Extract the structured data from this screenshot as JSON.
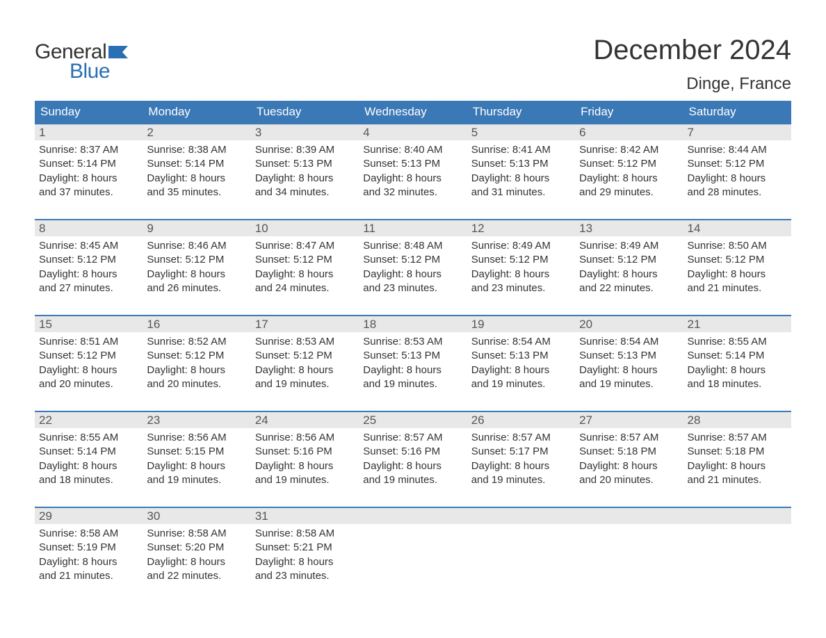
{
  "logo": {
    "text_general": "General",
    "text_blue": "Blue"
  },
  "header": {
    "month_title": "December 2024",
    "location": "Dinge, France"
  },
  "colors": {
    "header_bg": "#3b78b6",
    "header_text": "#ffffff",
    "daynum_bg": "#e8e8e8",
    "daynum_text": "#555555",
    "body_text": "#333333",
    "rule": "#3b78b6",
    "logo_blue": "#2a6fb3"
  },
  "day_names": [
    "Sunday",
    "Monday",
    "Tuesday",
    "Wednesday",
    "Thursday",
    "Friday",
    "Saturday"
  ],
  "weeks": [
    [
      {
        "n": "1",
        "sr": "Sunrise: 8:37 AM",
        "ss": "Sunset: 5:14 PM",
        "d1": "Daylight: 8 hours",
        "d2": "and 37 minutes."
      },
      {
        "n": "2",
        "sr": "Sunrise: 8:38 AM",
        "ss": "Sunset: 5:14 PM",
        "d1": "Daylight: 8 hours",
        "d2": "and 35 minutes."
      },
      {
        "n": "3",
        "sr": "Sunrise: 8:39 AM",
        "ss": "Sunset: 5:13 PM",
        "d1": "Daylight: 8 hours",
        "d2": "and 34 minutes."
      },
      {
        "n": "4",
        "sr": "Sunrise: 8:40 AM",
        "ss": "Sunset: 5:13 PM",
        "d1": "Daylight: 8 hours",
        "d2": "and 32 minutes."
      },
      {
        "n": "5",
        "sr": "Sunrise: 8:41 AM",
        "ss": "Sunset: 5:13 PM",
        "d1": "Daylight: 8 hours",
        "d2": "and 31 minutes."
      },
      {
        "n": "6",
        "sr": "Sunrise: 8:42 AM",
        "ss": "Sunset: 5:12 PM",
        "d1": "Daylight: 8 hours",
        "d2": "and 29 minutes."
      },
      {
        "n": "7",
        "sr": "Sunrise: 8:44 AM",
        "ss": "Sunset: 5:12 PM",
        "d1": "Daylight: 8 hours",
        "d2": "and 28 minutes."
      }
    ],
    [
      {
        "n": "8",
        "sr": "Sunrise: 8:45 AM",
        "ss": "Sunset: 5:12 PM",
        "d1": "Daylight: 8 hours",
        "d2": "and 27 minutes."
      },
      {
        "n": "9",
        "sr": "Sunrise: 8:46 AM",
        "ss": "Sunset: 5:12 PM",
        "d1": "Daylight: 8 hours",
        "d2": "and 26 minutes."
      },
      {
        "n": "10",
        "sr": "Sunrise: 8:47 AM",
        "ss": "Sunset: 5:12 PM",
        "d1": "Daylight: 8 hours",
        "d2": "and 24 minutes."
      },
      {
        "n": "11",
        "sr": "Sunrise: 8:48 AM",
        "ss": "Sunset: 5:12 PM",
        "d1": "Daylight: 8 hours",
        "d2": "and 23 minutes."
      },
      {
        "n": "12",
        "sr": "Sunrise: 8:49 AM",
        "ss": "Sunset: 5:12 PM",
        "d1": "Daylight: 8 hours",
        "d2": "and 23 minutes."
      },
      {
        "n": "13",
        "sr": "Sunrise: 8:49 AM",
        "ss": "Sunset: 5:12 PM",
        "d1": "Daylight: 8 hours",
        "d2": "and 22 minutes."
      },
      {
        "n": "14",
        "sr": "Sunrise: 8:50 AM",
        "ss": "Sunset: 5:12 PM",
        "d1": "Daylight: 8 hours",
        "d2": "and 21 minutes."
      }
    ],
    [
      {
        "n": "15",
        "sr": "Sunrise: 8:51 AM",
        "ss": "Sunset: 5:12 PM",
        "d1": "Daylight: 8 hours",
        "d2": "and 20 minutes."
      },
      {
        "n": "16",
        "sr": "Sunrise: 8:52 AM",
        "ss": "Sunset: 5:12 PM",
        "d1": "Daylight: 8 hours",
        "d2": "and 20 minutes."
      },
      {
        "n": "17",
        "sr": "Sunrise: 8:53 AM",
        "ss": "Sunset: 5:12 PM",
        "d1": "Daylight: 8 hours",
        "d2": "and 19 minutes."
      },
      {
        "n": "18",
        "sr": "Sunrise: 8:53 AM",
        "ss": "Sunset: 5:13 PM",
        "d1": "Daylight: 8 hours",
        "d2": "and 19 minutes."
      },
      {
        "n": "19",
        "sr": "Sunrise: 8:54 AM",
        "ss": "Sunset: 5:13 PM",
        "d1": "Daylight: 8 hours",
        "d2": "and 19 minutes."
      },
      {
        "n": "20",
        "sr": "Sunrise: 8:54 AM",
        "ss": "Sunset: 5:13 PM",
        "d1": "Daylight: 8 hours",
        "d2": "and 19 minutes."
      },
      {
        "n": "21",
        "sr": "Sunrise: 8:55 AM",
        "ss": "Sunset: 5:14 PM",
        "d1": "Daylight: 8 hours",
        "d2": "and 18 minutes."
      }
    ],
    [
      {
        "n": "22",
        "sr": "Sunrise: 8:55 AM",
        "ss": "Sunset: 5:14 PM",
        "d1": "Daylight: 8 hours",
        "d2": "and 18 minutes."
      },
      {
        "n": "23",
        "sr": "Sunrise: 8:56 AM",
        "ss": "Sunset: 5:15 PM",
        "d1": "Daylight: 8 hours",
        "d2": "and 19 minutes."
      },
      {
        "n": "24",
        "sr": "Sunrise: 8:56 AM",
        "ss": "Sunset: 5:16 PM",
        "d1": "Daylight: 8 hours",
        "d2": "and 19 minutes."
      },
      {
        "n": "25",
        "sr": "Sunrise: 8:57 AM",
        "ss": "Sunset: 5:16 PM",
        "d1": "Daylight: 8 hours",
        "d2": "and 19 minutes."
      },
      {
        "n": "26",
        "sr": "Sunrise: 8:57 AM",
        "ss": "Sunset: 5:17 PM",
        "d1": "Daylight: 8 hours",
        "d2": "and 19 minutes."
      },
      {
        "n": "27",
        "sr": "Sunrise: 8:57 AM",
        "ss": "Sunset: 5:18 PM",
        "d1": "Daylight: 8 hours",
        "d2": "and 20 minutes."
      },
      {
        "n": "28",
        "sr": "Sunrise: 8:57 AM",
        "ss": "Sunset: 5:18 PM",
        "d1": "Daylight: 8 hours",
        "d2": "and 21 minutes."
      }
    ],
    [
      {
        "n": "29",
        "sr": "Sunrise: 8:58 AM",
        "ss": "Sunset: 5:19 PM",
        "d1": "Daylight: 8 hours",
        "d2": "and 21 minutes."
      },
      {
        "n": "30",
        "sr": "Sunrise: 8:58 AM",
        "ss": "Sunset: 5:20 PM",
        "d1": "Daylight: 8 hours",
        "d2": "and 22 minutes."
      },
      {
        "n": "31",
        "sr": "Sunrise: 8:58 AM",
        "ss": "Sunset: 5:21 PM",
        "d1": "Daylight: 8 hours",
        "d2": "and 23 minutes."
      },
      {
        "n": "",
        "sr": "",
        "ss": "",
        "d1": "",
        "d2": ""
      },
      {
        "n": "",
        "sr": "",
        "ss": "",
        "d1": "",
        "d2": ""
      },
      {
        "n": "",
        "sr": "",
        "ss": "",
        "d1": "",
        "d2": ""
      },
      {
        "n": "",
        "sr": "",
        "ss": "",
        "d1": "",
        "d2": ""
      }
    ]
  ]
}
